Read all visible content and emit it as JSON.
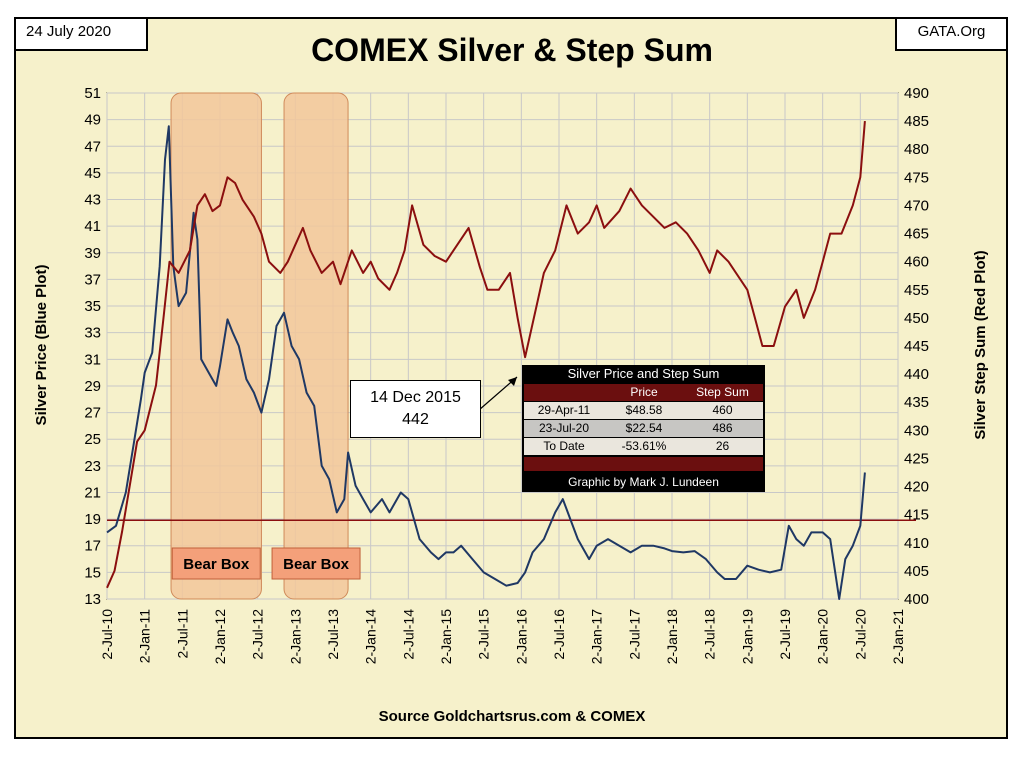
{
  "header": {
    "date": "24 July 2020",
    "site": "GATA.Org",
    "title": "COMEX Silver & Step Sum"
  },
  "footer": {
    "source": "Source Goldchartsrus.com & COMEX"
  },
  "colors": {
    "background": "#f6f1cb",
    "grid": "#c8c8c8",
    "silver_line": "#1f3864",
    "step_line": "#8b0f0f",
    "bear_box": "#f2c79b",
    "bear_label_fill": "#f4a07a"
  },
  "callout": {
    "date": "14 Dec 2015",
    "value": "442"
  },
  "info_table": {
    "title": "Silver Price and Step Sum",
    "columns": [
      "",
      "Price",
      "Step Sum"
    ],
    "rows": [
      [
        "29-Apr-11",
        "$48.58",
        "460"
      ],
      [
        "23-Jul-20",
        "$22.54",
        "486"
      ],
      [
        "To Date",
        "-53.61%",
        "26"
      ]
    ],
    "credit": "Graphic by Mark J. Lundeen"
  },
  "chart_data": {
    "type": "line",
    "title": "COMEX Silver & Step Sum",
    "xlabel": "Source Goldchartsrus.com & COMEX",
    "ylabel": "Silver Price   (Blue Plot)",
    "ylabel_right": "Silver Step Sum   (Red Plot)",
    "ylim": [
      13,
      51
    ],
    "ylim_right": [
      400,
      490
    ],
    "yticks": [
      13,
      15,
      17,
      19,
      21,
      23,
      25,
      27,
      29,
      31,
      33,
      35,
      37,
      39,
      41,
      43,
      45,
      47,
      49,
      51
    ],
    "yticks_right": [
      400,
      405,
      410,
      415,
      420,
      425,
      430,
      435,
      440,
      445,
      450,
      455,
      460,
      465,
      470,
      475,
      480,
      485,
      490
    ],
    "x_ticks": [
      "2-Jul-10",
      "2-Jan-11",
      "2-Jul-11",
      "2-Jan-12",
      "2-Jul-12",
      "2-Jan-13",
      "2-Jul-13",
      "2-Jan-14",
      "2-Jul-14",
      "2-Jan-15",
      "2-Jul-15",
      "2-Jan-16",
      "2-Jul-16",
      "2-Jan-17",
      "2-Jul-17",
      "2-Jan-18",
      "2-Jul-18",
      "2-Jan-19",
      "2-Jul-19",
      "2-Jan-20",
      "2-Jul-20",
      "2-Jan-21"
    ],
    "grid": true,
    "reference_line": {
      "axis": "right",
      "value": 414
    },
    "bear_boxes": [
      {
        "label": "Bear Box",
        "start": 2011.35,
        "end": 2012.55
      },
      {
        "label": "Bear Box",
        "start": 2012.85,
        "end": 2013.7
      }
    ],
    "series": [
      {
        "name": "Silver Price",
        "axis": "left",
        "x": [
          2010.5,
          2010.62,
          2010.75,
          2010.85,
          2010.95,
          2011.0,
          2011.1,
          2011.2,
          2011.27,
          2011.32,
          2011.38,
          2011.45,
          2011.55,
          2011.65,
          2011.7,
          2011.75,
          2011.85,
          2011.95,
          2012.0,
          2012.1,
          2012.17,
          2012.25,
          2012.35,
          2012.45,
          2012.55,
          2012.65,
          2012.75,
          2012.85,
          2012.95,
          2013.05,
          2013.15,
          2013.25,
          2013.35,
          2013.45,
          2013.55,
          2013.65,
          2013.7,
          2013.8,
          2013.9,
          2014.0,
          2014.15,
          2014.25,
          2014.4,
          2014.5,
          2014.65,
          2014.8,
          2014.9,
          2015.0,
          2015.1,
          2015.2,
          2015.35,
          2015.5,
          2015.65,
          2015.8,
          2015.95,
          2016.05,
          2016.15,
          2016.3,
          2016.45,
          2016.55,
          2016.65,
          2016.75,
          2016.9,
          2017.0,
          2017.15,
          2017.3,
          2017.45,
          2017.6,
          2017.75,
          2017.9,
          2018.0,
          2018.15,
          2018.3,
          2018.45,
          2018.6,
          2018.7,
          2018.85,
          2019.0,
          2019.15,
          2019.3,
          2019.45,
          2019.55,
          2019.65,
          2019.75,
          2019.85,
          2020.0,
          2020.1,
          2020.18,
          2020.22,
          2020.3,
          2020.4,
          2020.5,
          2020.56
        ],
        "values": [
          18.0,
          18.5,
          21.0,
          24.5,
          28.0,
          30.0,
          31.5,
          38.0,
          46.0,
          48.5,
          38.0,
          35.0,
          36.0,
          42.0,
          40.0,
          31.0,
          30.0,
          29.0,
          30.5,
          34.0,
          33.0,
          32.0,
          29.5,
          28.5,
          27.0,
          29.5,
          33.5,
          34.5,
          32.0,
          31.0,
          28.5,
          27.5,
          23.0,
          22.0,
          19.5,
          20.5,
          24.0,
          21.5,
          20.5,
          19.5,
          20.5,
          19.5,
          21.0,
          20.5,
          17.5,
          16.5,
          16.0,
          16.5,
          16.5,
          17.0,
          16.0,
          15.0,
          14.5,
          14.0,
          14.2,
          15.0,
          16.5,
          17.5,
          19.5,
          20.5,
          19.0,
          17.5,
          16.0,
          17.0,
          17.5,
          17.0,
          16.5,
          17.0,
          17.0,
          16.8,
          16.6,
          16.5,
          16.6,
          16.0,
          15.0,
          14.5,
          14.5,
          15.5,
          15.2,
          15.0,
          15.2,
          18.5,
          17.5,
          17.0,
          18.0,
          18.0,
          17.5,
          14.5,
          13.0,
          16.0,
          17.0,
          18.5,
          22.5
        ]
      },
      {
        "name": "Step Sum",
        "axis": "right",
        "x": [
          2010.5,
          2010.6,
          2010.7,
          2010.8,
          2010.9,
          2011.0,
          2011.15,
          2011.25,
          2011.33,
          2011.45,
          2011.6,
          2011.7,
          2011.8,
          2011.9,
          2012.0,
          2012.1,
          2012.2,
          2012.3,
          2012.45,
          2012.55,
          2012.65,
          2012.8,
          2012.9,
          2013.0,
          2013.1,
          2013.2,
          2013.35,
          2013.5,
          2013.6,
          2013.75,
          2013.9,
          2014.0,
          2014.1,
          2014.25,
          2014.35,
          2014.45,
          2014.55,
          2014.7,
          2014.85,
          2015.0,
          2015.1,
          2015.3,
          2015.45,
          2015.55,
          2015.7,
          2015.85,
          2015.95,
          2016.05,
          2016.2,
          2016.3,
          2016.45,
          2016.6,
          2016.75,
          2016.9,
          2017.0,
          2017.1,
          2017.3,
          2017.45,
          2017.6,
          2017.75,
          2017.9,
          2018.05,
          2018.2,
          2018.35,
          2018.5,
          2018.6,
          2018.75,
          2018.85,
          2019.0,
          2019.1,
          2019.2,
          2019.35,
          2019.5,
          2019.65,
          2019.75,
          2019.9,
          2020.0,
          2020.1,
          2020.25,
          2020.4,
          2020.5,
          2020.56
        ],
        "values": [
          402,
          405,
          412,
          420,
          428,
          430,
          438,
          450,
          460,
          458,
          462,
          470,
          472,
          469,
          470,
          475,
          474,
          471,
          468,
          465,
          460,
          458,
          460,
          463,
          466,
          462,
          458,
          460,
          456,
          462,
          458,
          460,
          457,
          455,
          458,
          462,
          470,
          463,
          461,
          460,
          462,
          466,
          459,
          455,
          455,
          458,
          450,
          443,
          452,
          458,
          462,
          470,
          465,
          467,
          470,
          466,
          469,
          473,
          470,
          468,
          466,
          467,
          465,
          462,
          458,
          462,
          460,
          458,
          455,
          450,
          445,
          445,
          452,
          455,
          450,
          455,
          460,
          465,
          465,
          470,
          475,
          485
        ]
      }
    ],
    "annotation": {
      "date": "14 Dec 2015",
      "value": 442
    }
  }
}
